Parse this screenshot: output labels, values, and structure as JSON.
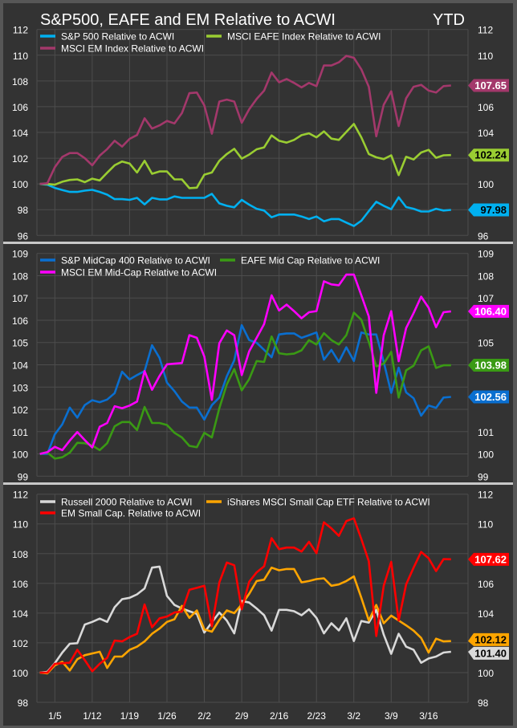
{
  "title": "S&P500, EAFE and EM Relative to ACWI",
  "period_label": "YTD",
  "chart_data": [
    {
      "type": "line",
      "ylim": [
        96,
        112
      ],
      "yticks": [
        96,
        98,
        100,
        102,
        104,
        106,
        108,
        110,
        112
      ],
      "grid": true,
      "legend": "top-left",
      "series": [
        {
          "name": "S&P 500 Relative to ACWI",
          "color": "#00b0f0",
          "label": "97.98",
          "label_text_color": "#000000",
          "values": [
            100,
            99.94,
            99.69,
            99.52,
            99.38,
            99.38,
            99.48,
            99.54,
            99.38,
            99.17,
            98.82,
            98.82,
            98.76,
            98.92,
            98.41,
            98.92,
            98.8,
            98.8,
            99.03,
            98.92,
            98.92,
            98.92,
            98.92,
            99.23,
            98.49,
            98.3,
            98.18,
            98.76,
            98.39,
            98.07,
            97.93,
            97.41,
            97.62,
            97.62,
            97.62,
            97.47,
            97.27,
            97.47,
            97.1,
            97.27,
            97.27,
            97.0,
            96.73,
            97.14,
            97.89,
            98.61,
            98.3,
            98.03,
            98.96,
            98.2,
            98.07,
            97.86,
            97.86,
            98.07,
            97.93,
            97.98
          ]
        },
        {
          "name": "MSCI EAFE Index Relative to ACWI",
          "color": "#9acd32",
          "label": "102.24",
          "label_text_color": "#000000",
          "values": [
            100,
            100,
            99.94,
            100.17,
            100.31,
            100.35,
            100.14,
            100.41,
            100.27,
            100.87,
            101.45,
            101.74,
            101.59,
            100.89,
            101.8,
            100.79,
            100.97,
            100.97,
            100.35,
            100.35,
            99.67,
            99.71,
            100.72,
            100.89,
            101.8,
            102.32,
            102.73,
            101.97,
            102.28,
            102.69,
            102.84,
            103.77,
            103.35,
            103.21,
            103.42,
            103.79,
            103.93,
            103.62,
            104.08,
            103.52,
            103.42,
            104.04,
            104.66,
            103.62,
            102.32,
            102.07,
            101.93,
            102.22,
            100.68,
            102.11,
            101.9,
            102.44,
            102.65,
            102.03,
            102.22,
            102.24
          ]
        },
        {
          "name": "MSCI EM Index Relative to ACWI",
          "color": "#a3386b",
          "label": "107.65",
          "label_text_color": "#ffffff",
          "values": [
            100,
            100.05,
            101.3,
            102.1,
            102.4,
            102.4,
            102,
            101.45,
            102.2,
            102.7,
            103.35,
            102.9,
            103.5,
            103.8,
            105.1,
            104.3,
            104.55,
            104.9,
            104.7,
            105.5,
            107.05,
            107.1,
            106.1,
            103.9,
            106.4,
            106.55,
            106.4,
            104.75,
            105.8,
            106.6,
            107.25,
            108.65,
            107.9,
            108.15,
            107.85,
            107.5,
            107.85,
            107.6,
            109.2,
            109.2,
            109.45,
            109.95,
            109.8,
            108.9,
            107.55,
            103.7,
            106.15,
            107.2,
            104.5,
            106.65,
            107.55,
            107.7,
            107.25,
            107.1,
            107.6,
            107.65
          ]
        }
      ]
    },
    {
      "type": "line",
      "ylim": [
        99,
        109
      ],
      "yticks": [
        99,
        100,
        101,
        102,
        103,
        104,
        105,
        106,
        107,
        108,
        109
      ],
      "grid": true,
      "legend": "top-left",
      "series": [
        {
          "name": "S&P MidCap 400 Relative to ACWI",
          "color": "#0a6fd0",
          "label": "102.56",
          "label_text_color": "#ffffff",
          "values": [
            100,
            100,
            100.88,
            101.33,
            102.08,
            101.63,
            102.19,
            102.41,
            102.32,
            102.44,
            102.73,
            103.69,
            103.34,
            103.54,
            103.72,
            104.88,
            104.31,
            103.2,
            102.82,
            102.35,
            102.08,
            102.08,
            101.54,
            102.19,
            102.53,
            103.48,
            104.2,
            105.78,
            105.11,
            104.99,
            104.67,
            104.34,
            105.36,
            105.41,
            105.41,
            105.21,
            105.33,
            105.45,
            104.23,
            104.67,
            104.13,
            104.79,
            104.17,
            105.45,
            105.36,
            105.36,
            104.13,
            102.74,
            103.87,
            102.76,
            102.5,
            101.72,
            102.17,
            102.07,
            102.53,
            102.56
          ]
        },
        {
          "name": "EAFE Mid Cap Relative to ACWI",
          "color": "#3a9a14",
          "label": "103.98",
          "label_text_color": "#ffffff",
          "values": [
            100,
            100.06,
            99.79,
            99.85,
            100.06,
            100.5,
            100.48,
            100.38,
            100.17,
            100.48,
            101.24,
            101.43,
            101.43,
            101.07,
            102.11,
            101.39,
            101.39,
            101.3,
            100.95,
            100.74,
            100.36,
            100.3,
            100.95,
            100.74,
            102.05,
            103.12,
            103.81,
            102.85,
            103.36,
            104.17,
            104.13,
            105.27,
            104.52,
            104.47,
            104.5,
            104.65,
            105.11,
            104.91,
            105.42,
            105.11,
            104.91,
            105.33,
            106.34,
            106.02,
            105.03,
            103.93,
            104.05,
            104.58,
            102.53,
            103.75,
            103.96,
            104.65,
            104.83,
            103.86,
            103.98,
            103.98
          ]
        },
        {
          "name": "MSCI EM Mid-Cap Relative to ACWI",
          "color": "#ff00ff",
          "label": "106.40",
          "label_text_color": "#ffffff",
          "values": [
            100,
            100.08,
            100.32,
            100.17,
            100.6,
            100.98,
            100.62,
            100.29,
            101.22,
            101.39,
            102.14,
            102.05,
            102.17,
            102.35,
            103.72,
            102.88,
            103.5,
            104.02,
            104.05,
            104.08,
            105.33,
            105.21,
            104.37,
            102.43,
            104.97,
            105.54,
            105.33,
            103.54,
            104.61,
            105.21,
            105.83,
            107.12,
            106.44,
            106.7,
            106.41,
            106.09,
            106.36,
            106.41,
            107.75,
            107.61,
            107.57,
            108.05,
            108.05,
            107.12,
            106.17,
            102.74,
            105.33,
            106.41,
            104.16,
            105.65,
            106.32,
            107.06,
            106.56,
            105.69,
            106.36,
            106.4
          ]
        }
      ]
    },
    {
      "type": "line",
      "ylim": [
        98,
        112
      ],
      "yticks": [
        98,
        100,
        102,
        104,
        106,
        108,
        110,
        112
      ],
      "grid": true,
      "legend": "top-left",
      "xticks": [
        "1/5",
        "1/12",
        "1/19",
        "1/26",
        "2/2",
        "2/9",
        "2/16",
        "2/23",
        "3/2",
        "3/9",
        "3/16"
      ],
      "series": [
        {
          "name": "Russell 2000 Relative to ACWI",
          "color": "#d9d9d9",
          "label": "101.40",
          "label_text_color": "#000000",
          "values": [
            100,
            100.05,
            100.63,
            101.35,
            101.94,
            101.98,
            103.23,
            103.41,
            103.63,
            103.41,
            104.4,
            104.94,
            105.03,
            105.26,
            105.66,
            107.06,
            107.13,
            105.16,
            104.55,
            104.31,
            104.13,
            103.95,
            102.69,
            103.38,
            104.04,
            103.5,
            102.64,
            104.82,
            104.71,
            104.31,
            103.86,
            102.82,
            104.22,
            104.22,
            104.13,
            103.86,
            104.26,
            103.68,
            102.64,
            103.32,
            102.84,
            103.65,
            102.12,
            103.47,
            103.36,
            104.22,
            102.55,
            101.26,
            102.61,
            101.74,
            101.53,
            100.66,
            100.95,
            101.08,
            101.35,
            101.4
          ]
        },
        {
          "name": "iShares MSCI Small Cap ETF Relative to ACWI",
          "color": "#ffa500",
          "label": "102.12",
          "label_text_color": "#000000",
          "values": [
            100,
            99.95,
            100.49,
            100.72,
            100.14,
            100.9,
            101.17,
            101.29,
            101.4,
            100.31,
            101.08,
            101.08,
            101.53,
            101.74,
            102.1,
            102.61,
            102.96,
            103.41,
            103.59,
            104.49,
            103.68,
            104.18,
            102.91,
            102.75,
            103.54,
            104.18,
            104.0,
            104.58,
            105.3,
            106.16,
            106.25,
            107.06,
            106.88,
            106.97,
            106.97,
            106.07,
            106.16,
            106.29,
            106.34,
            105.84,
            105.93,
            106.16,
            106.47,
            105.03,
            103.5,
            104.55,
            103.32,
            103.83,
            103.5,
            103.18,
            102.82,
            102.33,
            101.35,
            102.28,
            102.1,
            102.12
          ]
        },
        {
          "name": "EM Small Cap. Relative to ACWI",
          "color": "#ff0000",
          "label": "107.62",
          "label_text_color": "#ffffff",
          "values": [
            100,
            100,
            100.59,
            100.63,
            100.66,
            101.53,
            100.84,
            100.09,
            100.59,
            100.99,
            102.16,
            102.1,
            102.39,
            102.61,
            104.58,
            103.05,
            103.65,
            103.77,
            104.04,
            104.1,
            105.57,
            105.7,
            105.84,
            103.11,
            106.06,
            107.4,
            107.22,
            104.26,
            106.11,
            106.74,
            107.15,
            109.04,
            108.3,
            108.41,
            108.41,
            108.14,
            108.8,
            108.03,
            110.11,
            109.7,
            109.2,
            110.19,
            110.38,
            108.98,
            107.49,
            102.46,
            105.84,
            107.45,
            103.5,
            105.93,
            107.06,
            108.12,
            107.69,
            106.83,
            107.63,
            107.62
          ]
        }
      ]
    }
  ],
  "x_dates": [
    "1/1",
    "1/2",
    "1/5",
    "1/6",
    "1/7",
    "1/8",
    "1/9",
    "1/12",
    "1/13",
    "1/14",
    "1/15",
    "1/16",
    "1/19",
    "1/20",
    "1/21",
    "1/22",
    "1/23",
    "1/26",
    "1/27",
    "1/28",
    "1/29",
    "1/30",
    "2/2",
    "2/3",
    "2/4",
    "2/5",
    "2/6",
    "2/9",
    "2/10",
    "2/11",
    "2/12",
    "2/13",
    "2/16",
    "2/17",
    "2/18",
    "2/19",
    "2/20",
    "2/23",
    "2/24",
    "2/25",
    "2/26",
    "2/27",
    "3/2",
    "3/3",
    "3/4",
    "3/5",
    "3/6",
    "3/9",
    "3/10",
    "3/11",
    "3/12",
    "3/13",
    "3/16",
    "3/17",
    "3/18",
    "3/19"
  ]
}
